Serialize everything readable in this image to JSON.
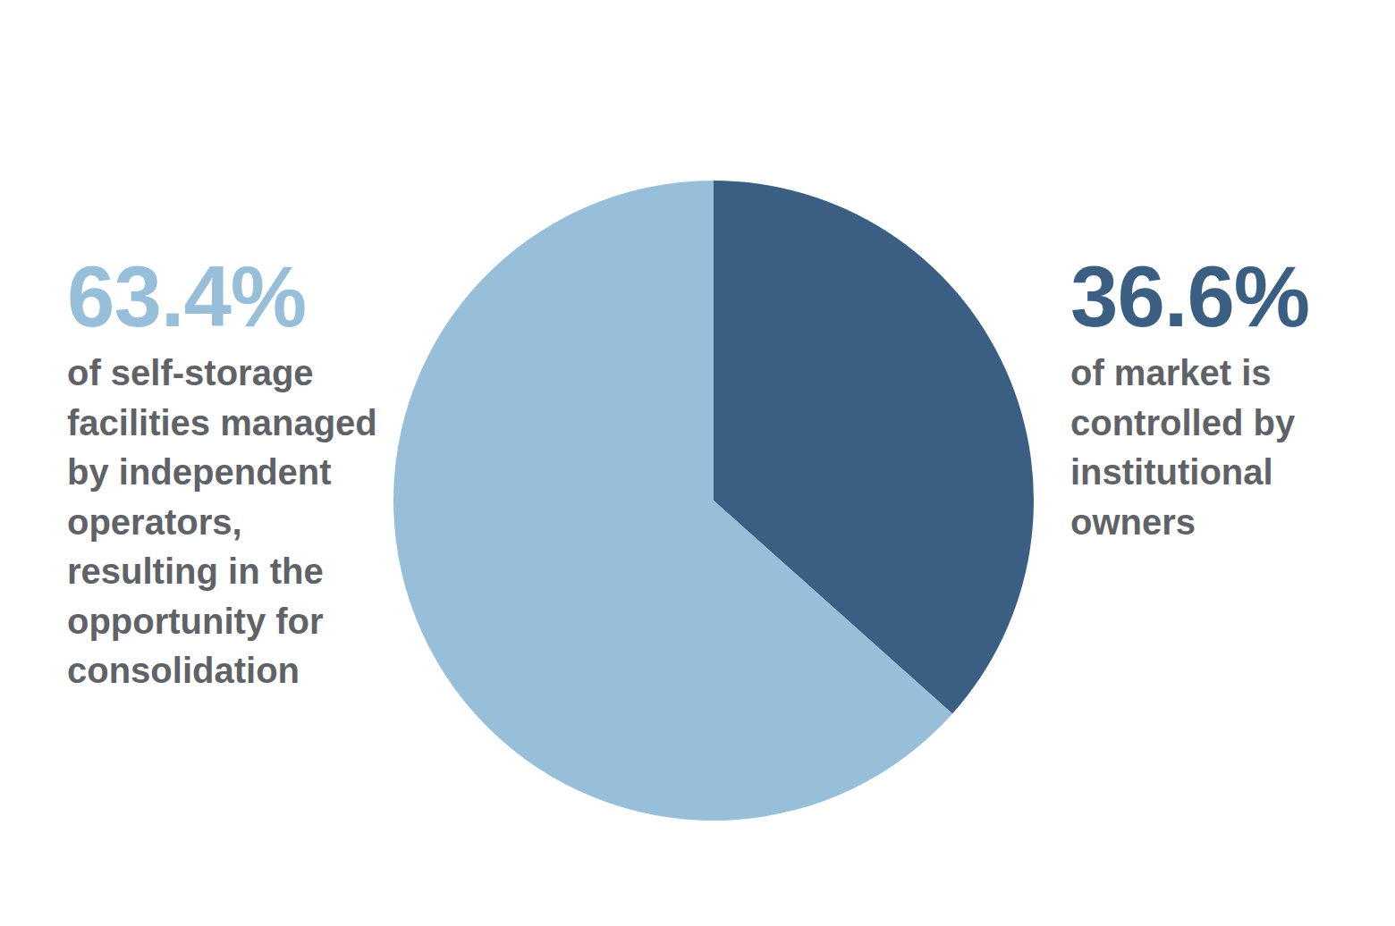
{
  "chart_data": {
    "type": "pie",
    "categories": [
      "of market is controlled by institutional owners",
      "of self-storage facilities managed by independent operators, resulting in the opportunity for consolidation"
    ],
    "values": [
      36.6,
      63.4
    ],
    "value_labels": [
      "36.6%",
      "63.4%"
    ],
    "colors": [
      "#3b5f82",
      "#97bfd9"
    ],
    "data_labels": true,
    "legend": false
  }
}
